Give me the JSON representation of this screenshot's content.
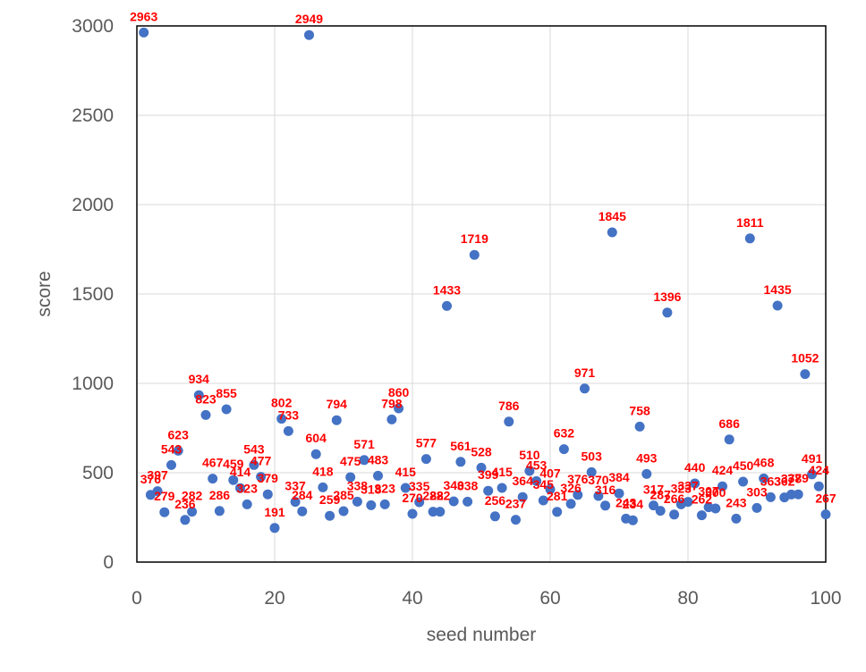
{
  "chart_data": {
    "type": "scatter",
    "title": "",
    "xlabel": "seed number",
    "ylabel": "score",
    "xlim": [
      0,
      100
    ],
    "ylim": [
      0,
      3000
    ],
    "xticks": [
      0,
      20,
      40,
      60,
      80,
      100
    ],
    "yticks": [
      0,
      500,
      1000,
      1500,
      2000,
      2500,
      3000
    ],
    "grid": true,
    "legend": "none",
    "colors": {
      "marker": "#4472c4",
      "label": "#ff0000",
      "grid": "#d9d9d9"
    },
    "series": [
      {
        "x": [
          1,
          2,
          3,
          4,
          5,
          6,
          7,
          8,
          9,
          10,
          11,
          12,
          13,
          14,
          15,
          16,
          17,
          18,
          19,
          20,
          21,
          22,
          23,
          24,
          25,
          26,
          27,
          28,
          29,
          30,
          31,
          32,
          33,
          34,
          35,
          36,
          37,
          38,
          39,
          40,
          41,
          42,
          43,
          44,
          45,
          46,
          47,
          48,
          49,
          50,
          51,
          52,
          53,
          54,
          55,
          56,
          57,
          58,
          59,
          60,
          61,
          62,
          63,
          64,
          65,
          66,
          67,
          68,
          69,
          70,
          71,
          72,
          73,
          74,
          75,
          76,
          77,
          78,
          79,
          80,
          81,
          82,
          83,
          84,
          85,
          86,
          87,
          88,
          89,
          90,
          91,
          92,
          93,
          94,
          95,
          96,
          97,
          98,
          99,
          100
        ],
        "y": [
          2963,
          376,
          397,
          279,
          543,
          623,
          236,
          282,
          934,
          823,
          467,
          286,
          855,
          459,
          414,
          323,
          543,
          477,
          379,
          191,
          802,
          733,
          337,
          284,
          2949,
          604,
          418,
          259,
          794,
          285,
          475,
          338,
          571,
          318,
          483,
          323,
          798,
          860,
          415,
          270,
          335,
          577,
          282,
          282,
          1433,
          340,
          561,
          338,
          1719,
          528,
          399,
          256,
          415,
          786,
          237,
          364,
          510,
          453,
          345,
          407,
          281,
          632,
          326,
          376,
          971,
          503,
          370,
          316,
          1845,
          384,
          243,
          234,
          758,
          493,
          317,
          287,
          1396,
          266,
          323,
          337,
          440,
          262,
          307,
          300,
          424,
          686,
          243,
          450,
          1811,
          303,
          468,
          363,
          1435,
          362,
          378,
          379,
          1052,
          491,
          424,
          267
        ]
      }
    ]
  }
}
